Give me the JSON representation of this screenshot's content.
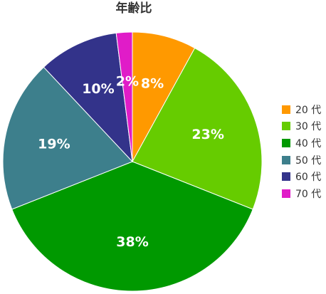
{
  "chart_data": {
    "type": "pie",
    "title": "年齢比",
    "categories": [
      "20 代",
      "30 代",
      "40 代",
      "50 代",
      "60 代",
      "70 代"
    ],
    "values": [
      8,
      23,
      38,
      19,
      10,
      2
    ],
    "labels": [
      "8%",
      "23%",
      "38%",
      "19%",
      "10%",
      "2%"
    ],
    "colors": [
      "#ff9900",
      "#66cc00",
      "#009900",
      "#3d7f8c",
      "#33338a",
      "#e01cc8"
    ],
    "legend_position": "right",
    "start_angle": "12 o'clock",
    "direction": "clockwise"
  }
}
